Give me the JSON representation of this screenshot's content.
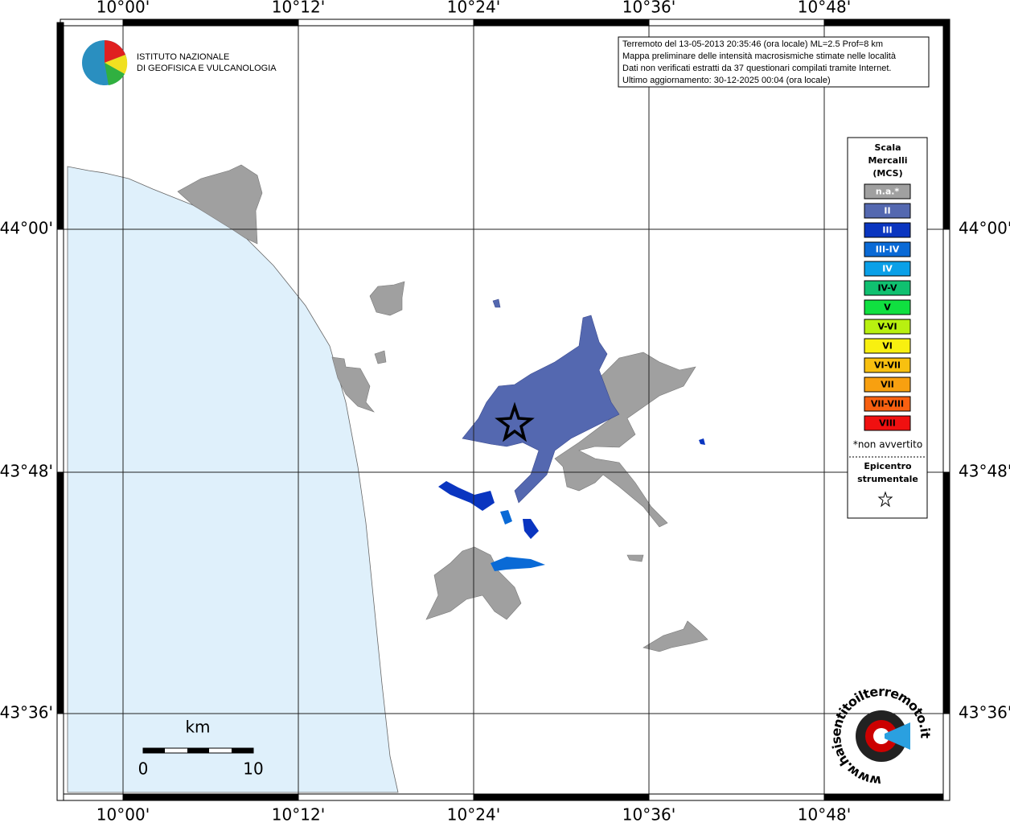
{
  "map": {
    "lon_labels": [
      "10°00'",
      "10°12'",
      "10°24'",
      "10°36'",
      "10°48'"
    ],
    "lat_labels": [
      "44°00'",
      "43°48'",
      "43°36'"
    ],
    "institute": [
      "ISTITUTO NAZIONALE",
      "DI GEOFISICA E VULCANOLOGIA"
    ],
    "info": [
      "Terremoto del 13-05-2013 20:35:46 (ora locale) ML=2.5 Prof=8 km",
      "Mappa preliminare delle intensità macrosismiche stimate nelle località",
      "Dati non verificati estratti da 37 questionari compilati tramite Internet.",
      "Ultimo aggiornamento: 30-12-2025 00:04 (ora locale)"
    ],
    "legend": {
      "title": [
        "Scala",
        "Mercalli",
        "(MCS)"
      ],
      "items": [
        {
          "label": "n.a.*",
          "color": "#a0a0a0"
        },
        {
          "label": "II",
          "color": "#5468b0"
        },
        {
          "label": "III",
          "color": "#0a35c0"
        },
        {
          "label": "III-IV",
          "color": "#0a6ad6"
        },
        {
          "label": "IV",
          "color": "#0aa0e8"
        },
        {
          "label": "IV-V",
          "color": "#10c070"
        },
        {
          "label": "V",
          "color": "#10e040"
        },
        {
          "label": "V-VI",
          "color": "#b8f010"
        },
        {
          "label": "VI",
          "color": "#f8f010"
        },
        {
          "label": "VI-VII",
          "color": "#f8c010"
        },
        {
          "label": "VII",
          "color": "#f8a010"
        },
        {
          "label": "VII-VIII",
          "color": "#f86010"
        },
        {
          "label": "VIII",
          "color": "#f01010"
        }
      ],
      "note": "*non avvertito",
      "epicenter": [
        "Epicentro",
        "strumentale"
      ]
    },
    "scale": {
      "unit": "km",
      "start": 0,
      "end": 10
    },
    "site": "www.haisentitoilterremoto.it"
  }
}
